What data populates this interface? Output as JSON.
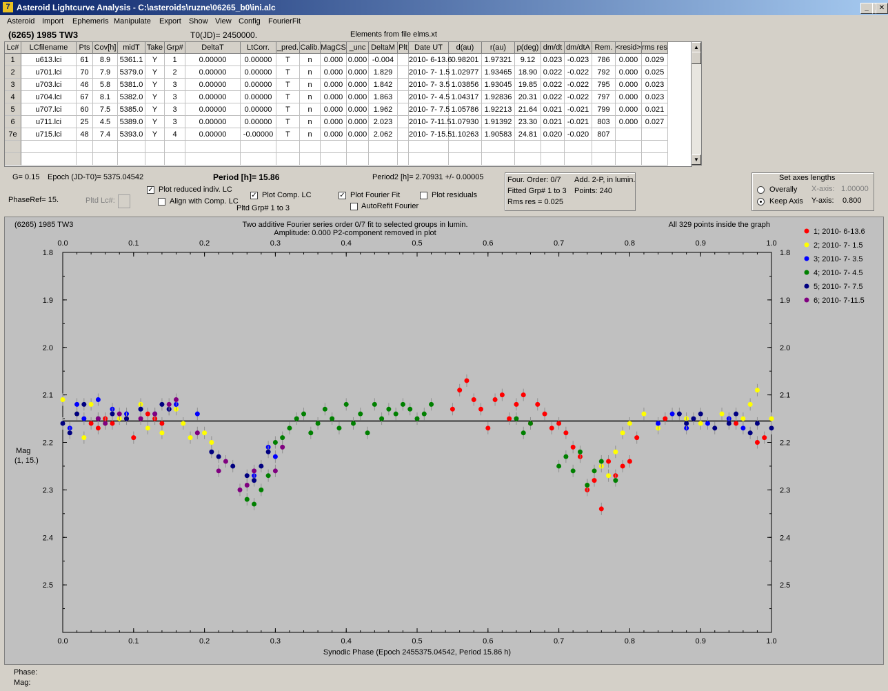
{
  "window": {
    "title": "Asteroid Lightcurve Analysis - C:\\asteroids\\ruzne\\06265_b0\\ini.alc",
    "icon": "7"
  },
  "menu": [
    "Asteroid",
    "Import",
    "Ephemeris",
    "Manipulate",
    "Export",
    "Show",
    "View",
    "Config",
    "FourierFit"
  ],
  "header": {
    "asteroid": "(6265) 1985 TW3",
    "t0": "T0(JD)= 2450000.",
    "elements": "Elements from file elms.xt"
  },
  "table": {
    "columns": [
      "Lc#",
      "LCfilename",
      "Pts",
      "Cov[h]",
      "midT",
      "Take",
      "Grp#",
      "DeltaT",
      "LtCorr.",
      "_pred.",
      "Calib.",
      "MagCS",
      "_unc",
      "DeltaM",
      "Plt",
      "Date UT",
      "d(au)",
      "r(au)",
      "p(deg)",
      "dm/dt",
      "dm/dtA",
      "Rem.",
      "<resid>",
      "rms res"
    ],
    "rows": [
      [
        "1",
        "u613.lci",
        "61",
        "8.9",
        "5361.1",
        "Y",
        "1",
        "0.00000",
        "0.00000",
        "T",
        "n",
        "0.000",
        "0.000",
        "-0.004",
        "",
        "2010- 6-13.6",
        "0.98201",
        "1.97321",
        "9.12",
        "0.023",
        "-0.023",
        "786",
        "0.000",
        "0.029"
      ],
      [
        "2",
        "u701.lci",
        "70",
        "7.9",
        "5379.0",
        "Y",
        "2",
        "0.00000",
        "0.00000",
        "T",
        "n",
        "0.000",
        "0.000",
        "1.829",
        "",
        "2010- 7- 1.5",
        "1.02977",
        "1.93465",
        "18.90",
        "0.022",
        "-0.022",
        "792",
        "0.000",
        "0.025"
      ],
      [
        "3",
        "u703.lci",
        "46",
        "5.8",
        "5381.0",
        "Y",
        "3",
        "0.00000",
        "0.00000",
        "T",
        "n",
        "0.000",
        "0.000",
        "1.842",
        "",
        "2010- 7- 3.5",
        "1.03856",
        "1.93045",
        "19.85",
        "0.022",
        "-0.022",
        "795",
        "0.000",
        "0.023"
      ],
      [
        "4",
        "u704.lci",
        "67",
        "8.1",
        "5382.0",
        "Y",
        "3",
        "0.00000",
        "0.00000",
        "T",
        "n",
        "0.000",
        "0.000",
        "1.863",
        "",
        "2010- 7- 4.5",
        "1.04317",
        "1.92836",
        "20.31",
        "0.022",
        "-0.022",
        "797",
        "0.000",
        "0.023"
      ],
      [
        "5",
        "u707.lci",
        "60",
        "7.5",
        "5385.0",
        "Y",
        "3",
        "0.00000",
        "0.00000",
        "T",
        "n",
        "0.000",
        "0.000",
        "1.962",
        "",
        "2010- 7- 7.5",
        "1.05786",
        "1.92213",
        "21.64",
        "0.021",
        "-0.021",
        "799",
        "0.000",
        "0.021"
      ],
      [
        "6",
        "u711.lci",
        "25",
        "4.5",
        "5389.0",
        "Y",
        "3",
        "0.00000",
        "0.00000",
        "T",
        "n",
        "0.000",
        "0.000",
        "2.023",
        "",
        "2010- 7-11.5",
        "1.07930",
        "1.91392",
        "23.30",
        "0.021",
        "-0.021",
        "803",
        "0.000",
        "0.027"
      ],
      [
        "7e",
        "u715.lci",
        "48",
        "7.4",
        "5393.0",
        "Y",
        "4",
        "0.00000",
        "-0.00000",
        "T",
        "n",
        "0.000",
        "0.000",
        "2.062",
        "",
        "2010- 7-15.5",
        "1.10263",
        "1.90583",
        "24.81",
        "0.020",
        "-0.020",
        "807",
        "",
        ""
      ]
    ]
  },
  "controls": {
    "g": "G= 0.15",
    "epoch": "Epoch (JD-T0)= 5375.04542",
    "period": "Period [h]= 15.86",
    "period2": "Period2 [h]= 2.70931 +/- 0.00005",
    "phaseref": "PhaseRef= 15.",
    "pltd_lc": "Pltd Lc#:",
    "plot_reduced": "Plot reduced indiv. LC",
    "align_comp": "Align with Comp. LC",
    "plot_comp": "Plot Comp. LC",
    "pltd_grp": "Pltd Grp#  1   to    3",
    "plot_fourier": "Plot Fourier Fit",
    "autorefit": "AutoRefit Fourier",
    "plot_residuals": "Plot residuals",
    "four_order": "Four. Order:  0/7",
    "add2p": "Add. 2-P, in lumin.",
    "fitted_grp": "Fitted Grp# 1 to 3",
    "points": "Points: 240",
    "rms_res": "Rms res      = 0.025",
    "axes_title": "Set axes lengths",
    "overally": "Overally",
    "keep_axis": "Keep Axis",
    "xaxis_label": "X-axis:",
    "xaxis_val": "1.00000",
    "yaxis_label": "Y-axis:",
    "yaxis_val": "0.800"
  },
  "chart_data": {
    "type": "scatter",
    "title_left": "(6265) 1985 TW3",
    "title_center1": "Two additive Fourier series order 0/7 fit to selected groups in lumin.",
    "title_center2": "Amplitude: 0.000                    P2-component removed in plot",
    "title_right": "All 329 points inside the graph",
    "xlabel": "Synodic Phase (Epoch 2455375.04542, Period 15.86 h)",
    "ylabel1": "Mag",
    "ylabel2": "(1, 15.)",
    "xlim": [
      0.0,
      1.0
    ],
    "ylim": [
      1.8,
      2.6
    ],
    "y_inverted": true,
    "xticks": [
      "0.0",
      "0.1",
      "0.2",
      "0.3",
      "0.4",
      "0.5",
      "0.6",
      "0.7",
      "0.8",
      "0.9",
      "1.0"
    ],
    "yticks": [
      "1.8",
      "1.9",
      "2.0",
      "2.1",
      "2.2",
      "2.3",
      "2.4",
      "2.5"
    ],
    "fit_line_y": 2.155,
    "series": [
      {
        "name": "1; 2010- 6-13.6",
        "color": "#ff0000",
        "points": [
          [
            0.04,
            2.16
          ],
          [
            0.05,
            2.17
          ],
          [
            0.06,
            2.15
          ],
          [
            0.07,
            2.16
          ],
          [
            0.09,
            2.15
          ],
          [
            0.1,
            2.19
          ],
          [
            0.12,
            2.14
          ],
          [
            0.13,
            2.15
          ],
          [
            0.14,
            2.16
          ],
          [
            0.55,
            2.13
          ],
          [
            0.56,
            2.09
          ],
          [
            0.57,
            2.07
          ],
          [
            0.58,
            2.11
          ],
          [
            0.59,
            2.13
          ],
          [
            0.6,
            2.17
          ],
          [
            0.61,
            2.11
          ],
          [
            0.62,
            2.1
          ],
          [
            0.63,
            2.15
          ],
          [
            0.64,
            2.12
          ],
          [
            0.65,
            2.1
          ],
          [
            0.66,
            2.16
          ],
          [
            0.67,
            2.12
          ],
          [
            0.68,
            2.14
          ],
          [
            0.69,
            2.17
          ],
          [
            0.7,
            2.16
          ],
          [
            0.71,
            2.18
          ],
          [
            0.72,
            2.21
          ],
          [
            0.73,
            2.23
          ],
          [
            0.74,
            2.3
          ],
          [
            0.75,
            2.28
          ],
          [
            0.76,
            2.34
          ],
          [
            0.77,
            2.24
          ],
          [
            0.78,
            2.27
          ],
          [
            0.79,
            2.25
          ],
          [
            0.8,
            2.24
          ],
          [
            0.81,
            2.19
          ],
          [
            0.85,
            2.15
          ],
          [
            0.95,
            2.16
          ],
          [
            0.98,
            2.2
          ],
          [
            0.99,
            2.19
          ]
        ]
      },
      {
        "name": "2; 2010- 7- 1.5",
        "color": "#ffff00",
        "points": [
          [
            0.0,
            2.11
          ],
          [
            0.02,
            2.14
          ],
          [
            0.03,
            2.19
          ],
          [
            0.04,
            2.12
          ],
          [
            0.06,
            2.16
          ],
          [
            0.08,
            2.15
          ],
          [
            0.11,
            2.12
          ],
          [
            0.12,
            2.17
          ],
          [
            0.14,
            2.18
          ],
          [
            0.16,
            2.13
          ],
          [
            0.17,
            2.16
          ],
          [
            0.18,
            2.19
          ],
          [
            0.2,
            2.18
          ],
          [
            0.21,
            2.2
          ],
          [
            0.74,
            2.29
          ],
          [
            0.75,
            2.26
          ],
          [
            0.76,
            2.25
          ],
          [
            0.77,
            2.27
          ],
          [
            0.78,
            2.22
          ],
          [
            0.79,
            2.18
          ],
          [
            0.8,
            2.16
          ],
          [
            0.82,
            2.14
          ],
          [
            0.84,
            2.17
          ],
          [
            0.88,
            2.15
          ],
          [
            0.9,
            2.16
          ],
          [
            0.93,
            2.14
          ],
          [
            0.96,
            2.15
          ],
          [
            0.97,
            2.12
          ],
          [
            0.98,
            2.09
          ],
          [
            1.0,
            2.15
          ]
        ]
      },
      {
        "name": "3; 2010- 7- 3.5",
        "color": "#0000ff",
        "points": [
          [
            0.01,
            2.17
          ],
          [
            0.02,
            2.12
          ],
          [
            0.03,
            2.15
          ],
          [
            0.05,
            2.11
          ],
          [
            0.07,
            2.13
          ],
          [
            0.09,
            2.14
          ],
          [
            0.11,
            2.13
          ],
          [
            0.13,
            2.14
          ],
          [
            0.15,
            2.13
          ],
          [
            0.16,
            2.12
          ],
          [
            0.19,
            2.14
          ],
          [
            0.27,
            2.27
          ],
          [
            0.29,
            2.21
          ],
          [
            0.3,
            2.23
          ],
          [
            0.84,
            2.16
          ],
          [
            0.86,
            2.14
          ],
          [
            0.88,
            2.17
          ],
          [
            0.91,
            2.16
          ],
          [
            0.94,
            2.15
          ],
          [
            0.96,
            2.17
          ]
        ]
      },
      {
        "name": "4; 2010- 7- 4.5",
        "color": "#008000",
        "points": [
          [
            0.26,
            2.32
          ],
          [
            0.27,
            2.33
          ],
          [
            0.28,
            2.3
          ],
          [
            0.29,
            2.27
          ],
          [
            0.3,
            2.2
          ],
          [
            0.31,
            2.19
          ],
          [
            0.32,
            2.17
          ],
          [
            0.33,
            2.15
          ],
          [
            0.34,
            2.14
          ],
          [
            0.35,
            2.18
          ],
          [
            0.36,
            2.16
          ],
          [
            0.37,
            2.13
          ],
          [
            0.38,
            2.15
          ],
          [
            0.39,
            2.17
          ],
          [
            0.4,
            2.12
          ],
          [
            0.41,
            2.16
          ],
          [
            0.42,
            2.14
          ],
          [
            0.43,
            2.18
          ],
          [
            0.44,
            2.12
          ],
          [
            0.45,
            2.15
          ],
          [
            0.46,
            2.13
          ],
          [
            0.47,
            2.14
          ],
          [
            0.48,
            2.12
          ],
          [
            0.49,
            2.13
          ],
          [
            0.5,
            2.15
          ],
          [
            0.51,
            2.14
          ],
          [
            0.52,
            2.12
          ],
          [
            0.64,
            2.15
          ],
          [
            0.65,
            2.18
          ],
          [
            0.66,
            2.16
          ],
          [
            0.7,
            2.25
          ],
          [
            0.71,
            2.23
          ],
          [
            0.72,
            2.26
          ],
          [
            0.73,
            2.22
          ],
          [
            0.74,
            2.29
          ],
          [
            0.75,
            2.26
          ],
          [
            0.76,
            2.24
          ],
          [
            0.78,
            2.28
          ]
        ]
      },
      {
        "name": "5; 2010- 7- 7.5",
        "color": "#000080",
        "points": [
          [
            0.0,
            2.16
          ],
          [
            0.01,
            2.18
          ],
          [
            0.02,
            2.14
          ],
          [
            0.03,
            2.12
          ],
          [
            0.05,
            2.15
          ],
          [
            0.07,
            2.14
          ],
          [
            0.09,
            2.15
          ],
          [
            0.11,
            2.13
          ],
          [
            0.14,
            2.12
          ],
          [
            0.15,
            2.13
          ],
          [
            0.21,
            2.22
          ],
          [
            0.22,
            2.23
          ],
          [
            0.24,
            2.25
          ],
          [
            0.26,
            2.27
          ],
          [
            0.27,
            2.28
          ],
          [
            0.28,
            2.25
          ],
          [
            0.29,
            2.22
          ],
          [
            0.87,
            2.14
          ],
          [
            0.88,
            2.16
          ],
          [
            0.89,
            2.15
          ],
          [
            0.9,
            2.14
          ],
          [
            0.92,
            2.17
          ],
          [
            0.94,
            2.16
          ],
          [
            0.95,
            2.14
          ],
          [
            0.97,
            2.18
          ],
          [
            0.98,
            2.16
          ],
          [
            1.0,
            2.17
          ]
        ]
      },
      {
        "name": "6; 2010- 7-11.5",
        "color": "#800080",
        "points": [
          [
            0.05,
            2.15
          ],
          [
            0.06,
            2.16
          ],
          [
            0.08,
            2.14
          ],
          [
            0.11,
            2.15
          ],
          [
            0.13,
            2.14
          ],
          [
            0.15,
            2.12
          ],
          [
            0.16,
            2.11
          ],
          [
            0.19,
            2.18
          ],
          [
            0.22,
            2.26
          ],
          [
            0.23,
            2.24
          ],
          [
            0.25,
            2.3
          ],
          [
            0.26,
            2.29
          ],
          [
            0.27,
            2.26
          ],
          [
            0.3,
            2.26
          ],
          [
            0.31,
            2.21
          ]
        ]
      }
    ]
  },
  "status": {
    "phase": "Phase:",
    "mag": "Mag:"
  }
}
